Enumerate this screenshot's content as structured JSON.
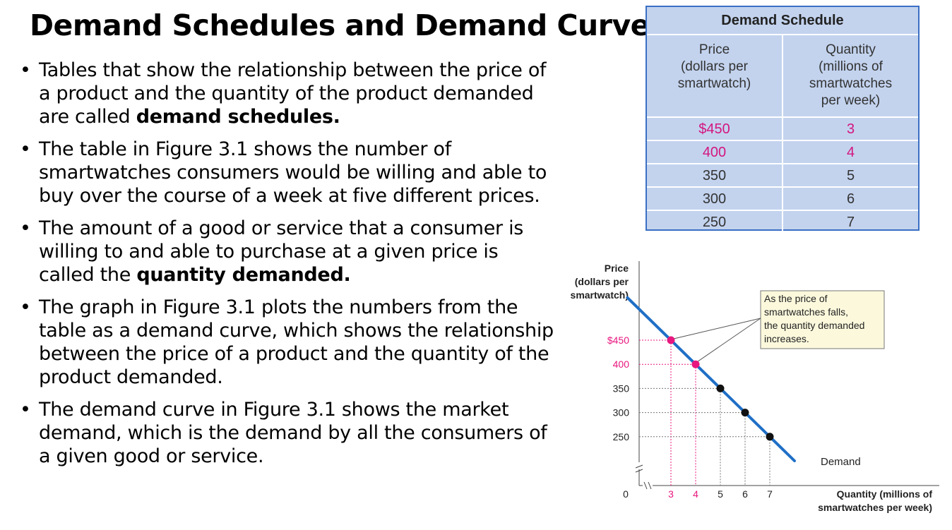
{
  "slide": {
    "title": "Demand Schedules and Demand Curves",
    "bullet_char": "•",
    "bullets": [
      {
        "pre": "Tables that show the relationship between the price of a product and the quantity of the product demanded are called ",
        "bold": "demand schedules.",
        "post": ""
      },
      {
        "pre": "The table in Figure 3.1 shows the number of smartwatches consumers would be willing and able to buy over the course of a week at five different prices.",
        "bold": "",
        "post": ""
      },
      {
        "pre": " The amount of a good or service that a consumer is willing to and able to purchase at a given price is called the ",
        "bold": "quantity demanded.",
        "post": ""
      },
      {
        "pre": "The graph in Figure 3.1 plots the numbers from the table as a demand curve, which shows the relationship between the price of a product and the quantity of the product demanded.",
        "bold": "",
        "post": ""
      },
      {
        "pre": "The demand curve in Figure 3.1 shows the market demand, which is the demand by all the consumers of a given good or service.",
        "bold": "",
        "post": ""
      }
    ]
  },
  "schedule": {
    "title": "Demand Schedule",
    "price_header": [
      "Price",
      "(dollars per",
      "smartwatch)"
    ],
    "quantity_header": [
      "Quantity",
      "(millions of",
      "smartwatches",
      "per week)"
    ],
    "rows": [
      {
        "price": "$450",
        "quantity": "3",
        "highlight": true
      },
      {
        "price": "400",
        "quantity": "4",
        "highlight": true
      },
      {
        "price": "350",
        "quantity": "5",
        "highlight": false
      },
      {
        "price": "300",
        "quantity": "6",
        "highlight": false
      },
      {
        "price": "250",
        "quantity": "7",
        "highlight": false
      }
    ]
  },
  "chart_data": {
    "type": "line",
    "ylabel": [
      "Price",
      "(dollars per",
      "smartwatch)"
    ],
    "xlabel": [
      "Quantity (millions of",
      "smartwatches per week)"
    ],
    "origin_label": "0",
    "series": [
      {
        "name": "Demand",
        "x": [
          3,
          4,
          5,
          6,
          7
        ],
        "y": [
          450,
          400,
          350,
          300,
          250
        ]
      }
    ],
    "y_tick_labels": [
      "$450",
      "400",
      "350",
      "300",
      "250"
    ],
    "x_tick_labels": [
      "3",
      "4",
      "5",
      "6",
      "7"
    ],
    "highlighted_points": [
      0,
      1
    ],
    "annotation": [
      "As the price of",
      "smartwatches falls,",
      "the quantity demanded",
      "increases."
    ],
    "colors": {
      "line": "#1f6fc6",
      "highlight": "#e8177f",
      "point": "#111111",
      "callout_bg": "#fbf8dc"
    }
  }
}
